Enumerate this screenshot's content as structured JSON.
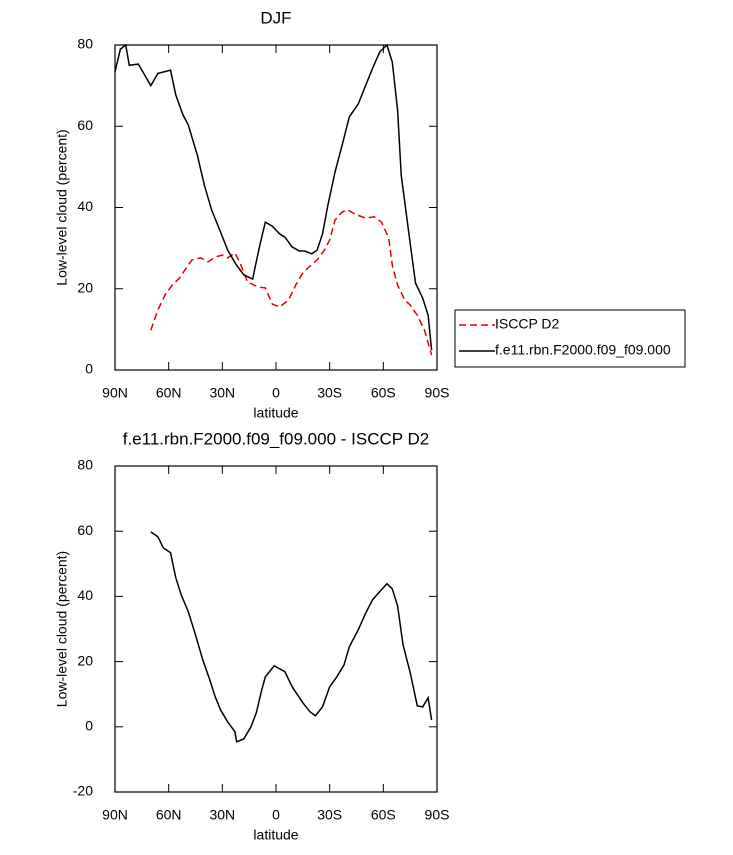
{
  "chart_data": [
    {
      "type": "line",
      "title": "DJF",
      "x_label": "latitude",
      "y_label": "Low-level cloud (percent)",
      "xlim": [
        90,
        -90
      ],
      "ylim": [
        0,
        80
      ],
      "xticks": [
        {
          "value": 90,
          "label": "90N"
        },
        {
          "value": 60,
          "label": "60N"
        },
        {
          "value": 30,
          "label": "30N"
        },
        0,
        {
          "value": -30,
          "label": "30S"
        },
        {
          "value": -60,
          "label": "60S"
        },
        {
          "value": -90,
          "label": "90S"
        }
      ],
      "yticks": [
        0,
        20,
        40,
        60,
        80
      ],
      "legend": "right",
      "series": [
        {
          "name": "ISCCP D2",
          "color": "#e00000",
          "dashed": true,
          "x": [
            70,
            66,
            62,
            58,
            54,
            51,
            47,
            42,
            38,
            34,
            30,
            27,
            23,
            20,
            16,
            10,
            6,
            2,
            -2,
            -7,
            -11,
            -15,
            -19,
            -23,
            -27,
            -30,
            -33,
            -37,
            -40,
            -44,
            -50,
            -55,
            -59,
            -63,
            -65,
            -68,
            -72,
            -75,
            -79,
            -83,
            -87
          ],
          "values": [
            9.8,
            14.8,
            18.5,
            20.9,
            22.6,
            24.6,
            27.1,
            27.6,
            26.6,
            27.8,
            28.3,
            27.6,
            28.8,
            26.3,
            21.7,
            20.4,
            20.2,
            16.2,
            15.5,
            17.2,
            20.9,
            23.9,
            25.6,
            27.1,
            29.5,
            32,
            36.9,
            38.9,
            39.4,
            38.4,
            37.4,
            37.7,
            36.4,
            32.5,
            25.8,
            20.9,
            17.2,
            16,
            13.5,
            9.8,
            3.7
          ]
        },
        {
          "name": "f.e11.rbn.F2000.f09_f09.000",
          "color": "#000000",
          "dashed": false,
          "x": [
            90,
            87,
            84,
            82,
            77,
            70,
            66,
            59,
            56,
            52,
            49,
            44,
            40,
            36,
            31,
            27,
            22,
            18,
            13,
            12,
            9,
            6,
            2,
            -2,
            -5,
            -9,
            -13,
            -16,
            -20,
            -23,
            -26,
            -29,
            -33,
            -37,
            -41,
            -46,
            -50,
            -54,
            -58,
            -62,
            -65,
            -68,
            -70,
            -74,
            -78,
            -82,
            -85,
            -87
          ],
          "values": [
            73.4,
            79,
            80,
            75,
            75.3,
            70,
            73,
            73.8,
            67.7,
            62.8,
            60.3,
            52.9,
            45.5,
            39.4,
            34,
            29.5,
            25.8,
            23.4,
            22.4,
            24.6,
            30.8,
            36.4,
            35.4,
            33.5,
            32.7,
            30.3,
            29.3,
            29.3,
            28.6,
            29.5,
            33.5,
            40.6,
            48.7,
            55.4,
            62.3,
            65.5,
            69.9,
            74.3,
            78.3,
            80,
            75.8,
            64,
            48,
            34.5,
            21.4,
            17.7,
            13.5,
            4.9
          ]
        }
      ]
    },
    {
      "type": "line",
      "title": "f.e11.rbn.F2000.f09_f09.000 - ISCCP D2",
      "x_label": "latitude",
      "y_label": "Low-level cloud (percent)",
      "xlim": [
        90,
        -90
      ],
      "ylim": [
        -20,
        80
      ],
      "xticks": [
        {
          "value": 90,
          "label": "90N"
        },
        {
          "value": 60,
          "label": "60N"
        },
        {
          "value": 30,
          "label": "30N"
        },
        0,
        {
          "value": -30,
          "label": "30S"
        },
        {
          "value": -60,
          "label": "60S"
        },
        {
          "value": -90,
          "label": "90S"
        }
      ],
      "yticks": [
        -20,
        0,
        20,
        40,
        60,
        80
      ],
      "series": [
        {
          "color": "#000000",
          "dashed": false,
          "x": [
            70,
            66,
            63,
            59,
            56,
            53,
            49,
            45,
            41,
            37,
            34,
            31,
            27,
            23,
            22,
            18,
            14,
            11,
            8,
            6,
            1,
            -5,
            -9,
            -15,
            -19,
            -22,
            -26,
            -30,
            -34,
            -38,
            -41,
            -46,
            -50,
            -54,
            -62,
            -65,
            -68,
            -71,
            -75,
            -79,
            -82,
            -85,
            -87
          ],
          "values": [
            59.8,
            58.3,
            54.9,
            53.4,
            45.7,
            40.5,
            35.3,
            28.2,
            20.6,
            14.4,
            9.2,
            5.2,
            1.5,
            -1.5,
            -4.6,
            -3.7,
            0,
            4.3,
            11.3,
            15.3,
            18.7,
            16.9,
            12.3,
            7.4,
            4.6,
            3.4,
            6.1,
            12.3,
            15.3,
            19,
            24.5,
            29.8,
            34.7,
            39,
            43.9,
            42.3,
            37.1,
            25.2,
            16.6,
            6.4,
            6.1,
            8.9,
            2.1
          ]
        }
      ]
    }
  ]
}
